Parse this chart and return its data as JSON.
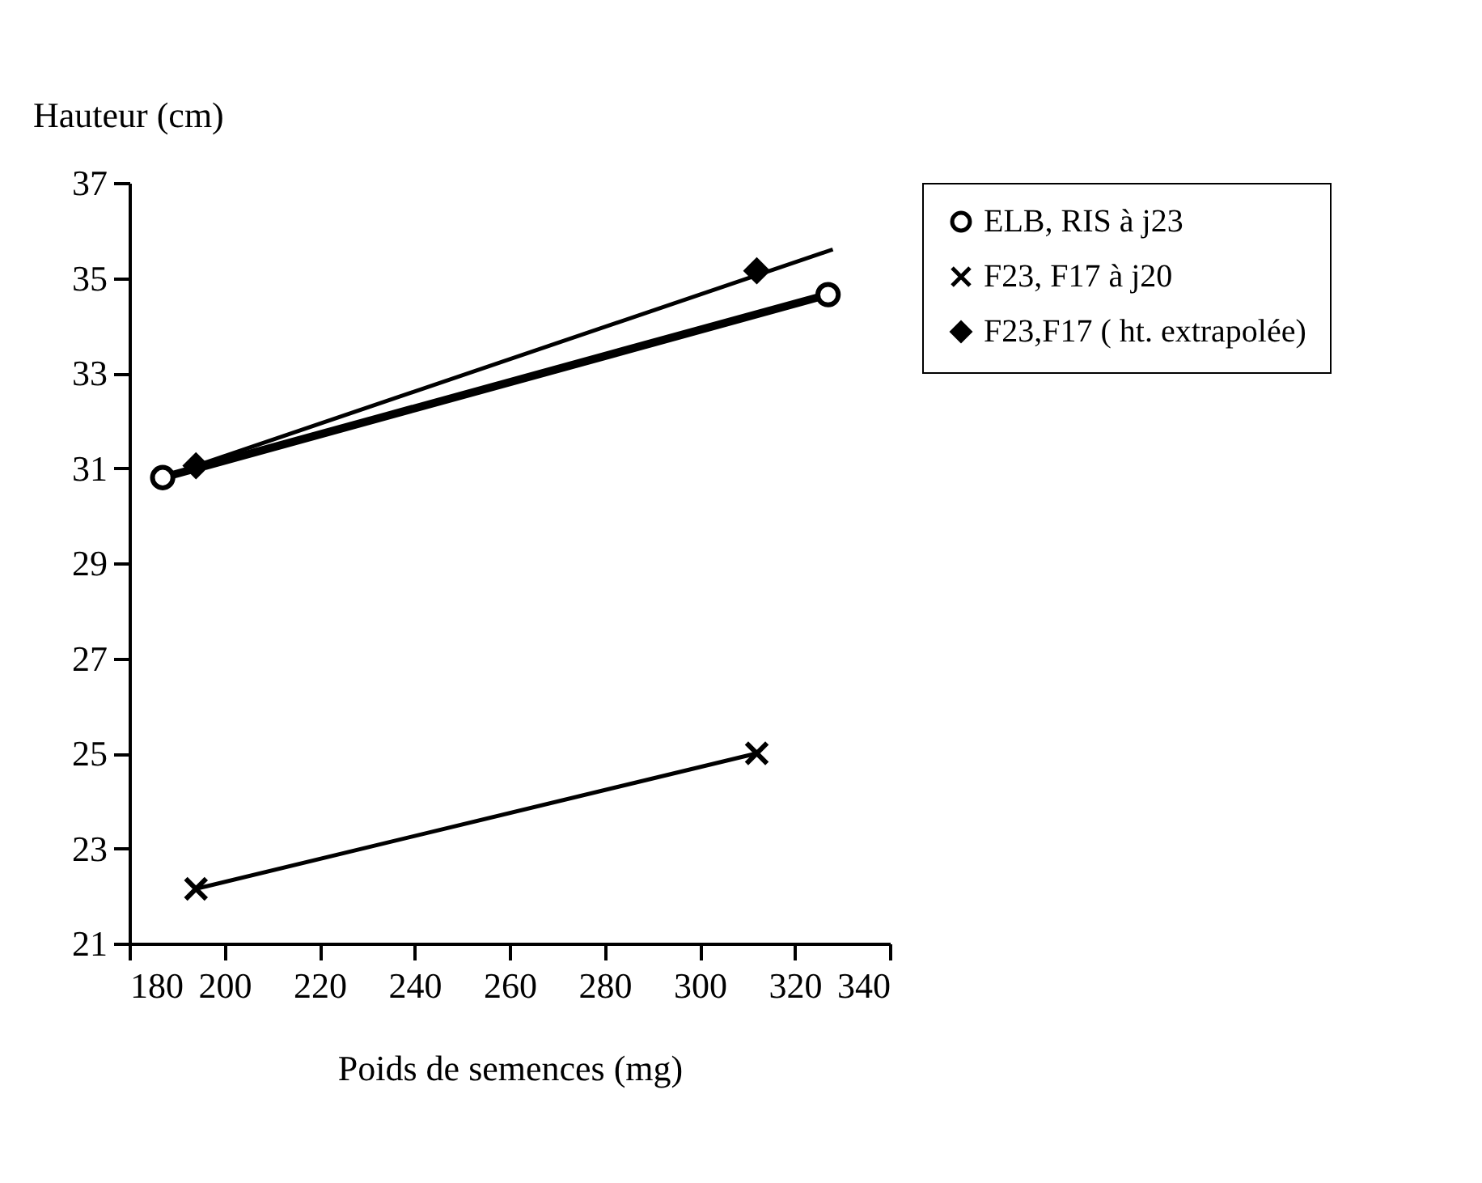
{
  "chart_data": {
    "type": "line",
    "xlabel": "Poids de semences (mg)",
    "ylabel": "Hauteur (cm)",
    "xlim": [
      180,
      340
    ],
    "xticks": [
      180,
      200,
      220,
      240,
      260,
      280,
      300,
      320,
      340
    ],
    "ylim": [
      21,
      37
    ],
    "yticks": [
      21,
      23,
      25,
      27,
      29,
      31,
      33,
      35,
      37
    ],
    "grid": false,
    "legend": "right",
    "line_style": "solid",
    "series": [
      {
        "name": "ELB, RIS à j23",
        "color": "#000000",
        "marker": "circle",
        "x": [
          187,
          327
        ],
        "values": [
          30.8,
          34.65
        ]
      },
      {
        "name": "F23, F17 à j20",
        "color": "#000000",
        "marker": "cross",
        "x": [
          194,
          312
        ],
        "values": [
          22.15,
          25.0
        ]
      },
      {
        "name": "F23,F17 ( ht. extrapolée)",
        "color": "#000000",
        "type": "scatter",
        "marker": "diamond",
        "x": [
          194,
          312
        ],
        "values": [
          31.05,
          35.15
        ]
      },
      {
        "color": "#000000",
        "type": "line",
        "marker": "none",
        "x": [
          194,
          328
        ],
        "values": [
          31.05,
          35.6
        ]
      }
    ]
  }
}
